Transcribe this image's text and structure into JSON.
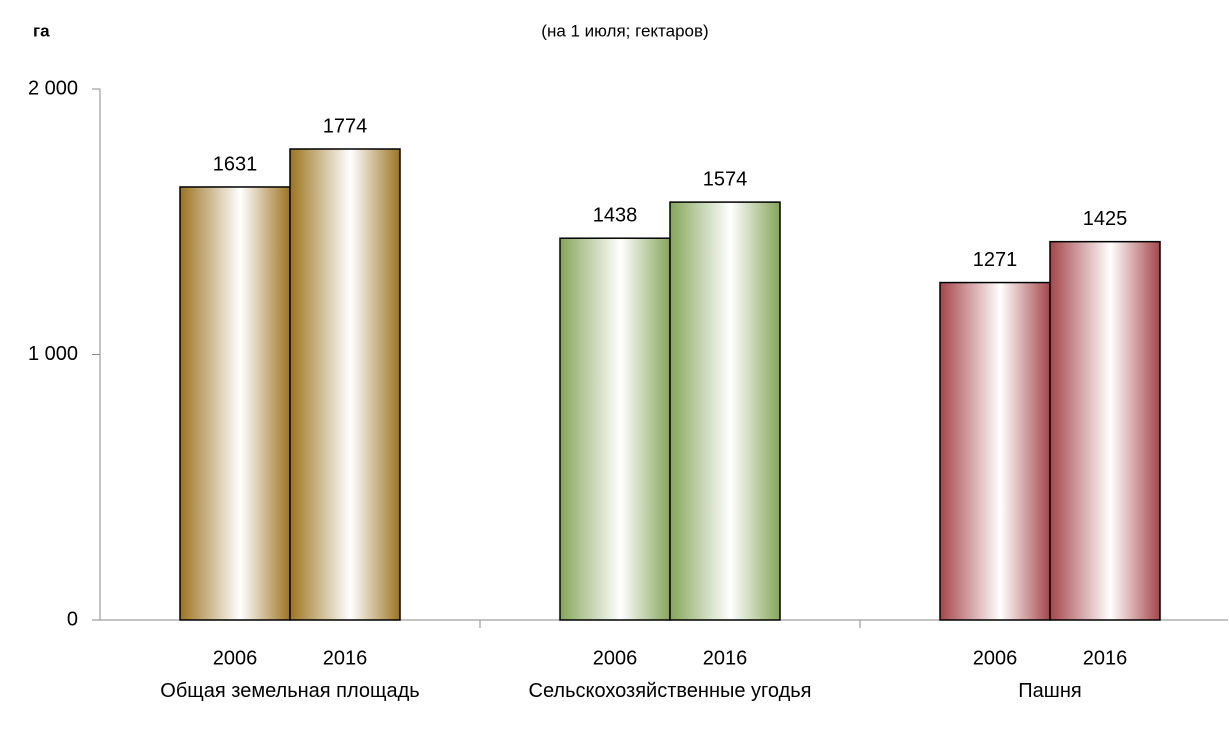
{
  "chart_data": {
    "type": "bar",
    "y_label": "га",
    "subtitle": "(на 1 июля; гектаров)",
    "categories": [
      "Общая земельная площадь",
      "Сельскохозяйственные угодья",
      "Пашня"
    ],
    "category_colors": [
      "#9c7420",
      "#86a55a",
      "#a4464a"
    ],
    "series": [
      {
        "name": "2006",
        "values": [
          1631,
          1438,
          1271
        ]
      },
      {
        "name": "2016",
        "values": [
          1774,
          1574,
          1425
        ]
      }
    ],
    "ylim": [
      0,
      2000
    ],
    "yticks": [
      0,
      {
        "value": 1000,
        "label": "1 000"
      },
      {
        "value": 2000,
        "label": "2 000"
      }
    ]
  }
}
